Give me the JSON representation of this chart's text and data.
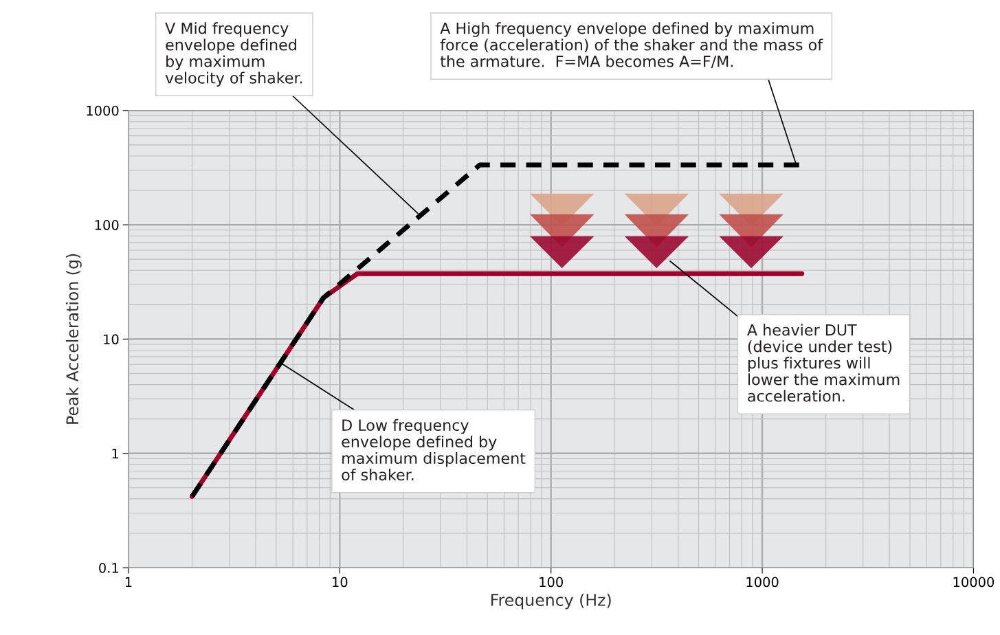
{
  "chart_data": {
    "type": "line",
    "xlabel": "Frequency (Hz)",
    "ylabel": "Peak Acceleration (g)",
    "log": "xy",
    "xlim": [
      1,
      10000
    ],
    "ylim": [
      0.1,
      1000
    ],
    "xticks": [
      1,
      10,
      100,
      1000,
      10000
    ],
    "yticks": [
      0.1,
      1,
      10,
      100,
      1000
    ],
    "grid": true,
    "series": [
      {
        "x": [
          2,
          8.38,
          12.1,
          1540
        ],
        "values": [
          0.42,
          23,
          37.3,
          37.3
        ],
        "color": "#a0002a",
        "line_style": "solid"
      },
      {
        "x": [
          2,
          8.38,
          46,
          1540
        ],
        "values": [
          0.42,
          23,
          334,
          334
        ],
        "color": "#000000",
        "line_style": "dashed"
      }
    ],
    "annotations": [
      {
        "text": "V Mid frequency\nenvelope defined\nby maximum\nvelocity of shaker.",
        "x": 23.4,
        "y": 126
      },
      {
        "text": "A High frequency envelope defined by maximum\nforce (acceleration) of the shaker and the mass of\nthe armature.  F=MA becomes A=F/M.",
        "x": 1450,
        "y": 334
      },
      {
        "text": "D Low frequency\nenvelope defined by\nmaximum displacement\nof shaker.",
        "x": 5.25,
        "y": 6.2
      },
      "A heavier DUT\n(device under test)\nplus fixtures will\nlower the maximum\nacceleration."
    ]
  }
}
